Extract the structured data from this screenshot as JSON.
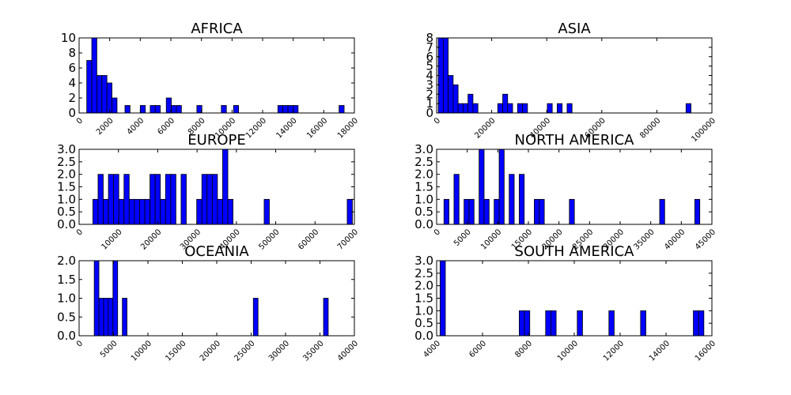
{
  "bar_color": "#0000ff",
  "chart_data": [
    {
      "type": "histogram",
      "title": "AFRICA",
      "xlim": [
        0,
        18000
      ],
      "ylim": [
        0,
        10
      ],
      "xticks": [
        "0",
        "2000",
        "4000",
        "6000",
        "8000",
        "10000",
        "12000",
        "14000",
        "16000",
        "18000"
      ],
      "yticks": [
        "0",
        "2",
        "4",
        "6",
        "8",
        "10"
      ],
      "bin_width": 330,
      "bins": [
        {
          "x": 500,
          "count": 7
        },
        {
          "x": 830,
          "count": 10
        },
        {
          "x": 1160,
          "count": 5
        },
        {
          "x": 1490,
          "count": 5
        },
        {
          "x": 1820,
          "count": 4
        },
        {
          "x": 2150,
          "count": 2
        },
        {
          "x": 3000,
          "count": 1
        },
        {
          "x": 4000,
          "count": 1
        },
        {
          "x": 4650,
          "count": 1
        },
        {
          "x": 4980,
          "count": 1
        },
        {
          "x": 5700,
          "count": 2
        },
        {
          "x": 6030,
          "count": 1
        },
        {
          "x": 6360,
          "count": 1
        },
        {
          "x": 7700,
          "count": 1
        },
        {
          "x": 9300,
          "count": 1
        },
        {
          "x": 10100,
          "count": 1
        },
        {
          "x": 13000,
          "count": 1
        },
        {
          "x": 13330,
          "count": 1
        },
        {
          "x": 13660,
          "count": 1
        },
        {
          "x": 13990,
          "count": 1
        },
        {
          "x": 17000,
          "count": 1
        }
      ]
    },
    {
      "type": "histogram",
      "title": "ASIA",
      "xlim": [
        0,
        100000
      ],
      "ylim": [
        0,
        8
      ],
      "xticks": [
        "0",
        "20000",
        "40000",
        "60000",
        "80000",
        "100000"
      ],
      "yticks": [
        "0",
        "1",
        "2",
        "3",
        "4",
        "5",
        "6",
        "7",
        "8"
      ],
      "bin_width": 1800,
      "bins": [
        {
          "x": 600,
          "count": 8
        },
        {
          "x": 2400,
          "count": 8
        },
        {
          "x": 4200,
          "count": 4
        },
        {
          "x": 6000,
          "count": 3
        },
        {
          "x": 7800,
          "count": 1
        },
        {
          "x": 9600,
          "count": 1
        },
        {
          "x": 11400,
          "count": 2
        },
        {
          "x": 13200,
          "count": 1
        },
        {
          "x": 22200,
          "count": 1
        },
        {
          "x": 24000,
          "count": 2
        },
        {
          "x": 25800,
          "count": 1
        },
        {
          "x": 29400,
          "count": 1
        },
        {
          "x": 31200,
          "count": 1
        },
        {
          "x": 40200,
          "count": 1
        },
        {
          "x": 43800,
          "count": 1
        },
        {
          "x": 47400,
          "count": 1
        },
        {
          "x": 90600,
          "count": 1
        }
      ]
    },
    {
      "type": "histogram",
      "title": "EUROPE",
      "xlim": [
        0,
        70000
      ],
      "ylim": [
        0,
        3.0
      ],
      "xticks": [
        "0",
        "10000",
        "20000",
        "30000",
        "40000",
        "50000",
        "60000",
        "70000"
      ],
      "yticks": [
        "0.0",
        "0.5",
        "1.0",
        "1.5",
        "2.0",
        "2.5",
        "3.0"
      ],
      "bin_width": 1320,
      "bins": [
        {
          "x": 3500,
          "count": 1
        },
        {
          "x": 4820,
          "count": 2
        },
        {
          "x": 6140,
          "count": 1
        },
        {
          "x": 7460,
          "count": 2
        },
        {
          "x": 8780,
          "count": 2
        },
        {
          "x": 10100,
          "count": 1
        },
        {
          "x": 11420,
          "count": 2
        },
        {
          "x": 12740,
          "count": 1
        },
        {
          "x": 14060,
          "count": 1
        },
        {
          "x": 15380,
          "count": 1
        },
        {
          "x": 16700,
          "count": 1
        },
        {
          "x": 18020,
          "count": 2
        },
        {
          "x": 19340,
          "count": 2
        },
        {
          "x": 20660,
          "count": 1
        },
        {
          "x": 21980,
          "count": 2
        },
        {
          "x": 23300,
          "count": 2
        },
        {
          "x": 25940,
          "count": 2
        },
        {
          "x": 29900,
          "count": 1
        },
        {
          "x": 31220,
          "count": 2
        },
        {
          "x": 32540,
          "count": 2
        },
        {
          "x": 33860,
          "count": 2
        },
        {
          "x": 35180,
          "count": 1
        },
        {
          "x": 36500,
          "count": 3
        },
        {
          "x": 37820,
          "count": 1
        },
        {
          "x": 47060,
          "count": 1
        },
        {
          "x": 68180,
          "count": 1
        }
      ]
    },
    {
      "type": "histogram",
      "title": "NORTH AMERICA",
      "xlim": [
        0,
        45000
      ],
      "ylim": [
        0,
        3.0
      ],
      "xticks": [
        "0",
        "5000",
        "10000",
        "15000",
        "20000",
        "25000",
        "30000",
        "35000",
        "40000",
        "45000"
      ],
      "yticks": [
        "0.0",
        "0.5",
        "1.0",
        "1.5",
        "2.0",
        "2.5",
        "3.0"
      ],
      "bin_width": 820,
      "bins": [
        {
          "x": 1200,
          "count": 1
        },
        {
          "x": 2840,
          "count": 2
        },
        {
          "x": 4480,
          "count": 1
        },
        {
          "x": 5300,
          "count": 1
        },
        {
          "x": 6940,
          "count": 3
        },
        {
          "x": 7760,
          "count": 1
        },
        {
          "x": 9400,
          "count": 1
        },
        {
          "x": 10220,
          "count": 3
        },
        {
          "x": 11860,
          "count": 2
        },
        {
          "x": 13500,
          "count": 2
        },
        {
          "x": 15960,
          "count": 1
        },
        {
          "x": 16780,
          "count": 1
        },
        {
          "x": 21700,
          "count": 1
        },
        {
          "x": 36460,
          "count": 1
        },
        {
          "x": 42200,
          "count": 1
        }
      ]
    },
    {
      "type": "histogram",
      "title": "OCEANIA",
      "xlim": [
        0,
        40000
      ],
      "ylim": [
        0,
        2.0
      ],
      "xticks": [
        "0",
        "5000",
        "10000",
        "15000",
        "20000",
        "25000",
        "30000",
        "35000",
        "40000"
      ],
      "yticks": [
        "0.0",
        "0.5",
        "1.0",
        "1.5",
        "2.0"
      ],
      "bin_width": 680,
      "bins": [
        {
          "x": 2200,
          "count": 2
        },
        {
          "x": 2880,
          "count": 1
        },
        {
          "x": 3560,
          "count": 1
        },
        {
          "x": 4240,
          "count": 1
        },
        {
          "x": 4920,
          "count": 2
        },
        {
          "x": 6280,
          "count": 1
        },
        {
          "x": 25320,
          "count": 1
        },
        {
          "x": 35520,
          "count": 1
        }
      ]
    },
    {
      "type": "histogram",
      "title": "SOUTH AMERICA",
      "xlim": [
        4000,
        16000
      ],
      "ylim": [
        0,
        3.0
      ],
      "xticks": [
        "4000",
        "6000",
        "8000",
        "10000",
        "12000",
        "14000",
        "16000"
      ],
      "yticks": [
        "0.0",
        "0.5",
        "1.0",
        "1.5",
        "2.0",
        "2.5",
        "3.0"
      ],
      "bin_width": 230,
      "bins": [
        {
          "x": 4150,
          "count": 3
        },
        {
          "x": 7600,
          "count": 1
        },
        {
          "x": 7830,
          "count": 1
        },
        {
          "x": 8750,
          "count": 1
        },
        {
          "x": 8980,
          "count": 1
        },
        {
          "x": 10130,
          "count": 1
        },
        {
          "x": 11510,
          "count": 1
        },
        {
          "x": 12890,
          "count": 1
        },
        {
          "x": 15190,
          "count": 1
        },
        {
          "x": 15420,
          "count": 1
        }
      ]
    }
  ]
}
